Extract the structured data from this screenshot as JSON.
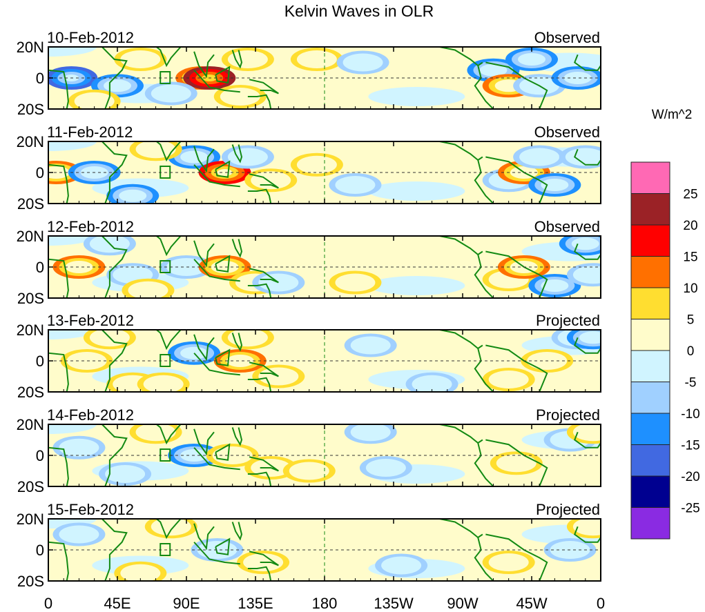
{
  "title": "Kelvin Waves in OLR",
  "units": "W/m^2",
  "lat_labels": [
    "20N",
    "0",
    "20S"
  ],
  "lon_labels": [
    "0",
    "45E",
    "90E",
    "135E",
    "180",
    "135W",
    "90W",
    "45W",
    "0"
  ],
  "colorbar": {
    "labels": [
      "25",
      "20",
      "15",
      "10",
      "5",
      "0",
      "-5",
      "-10",
      "-15",
      "-20",
      "-25"
    ],
    "colors": [
      "#ff69b4",
      "#9b2226",
      "#ff0000",
      "#ff7000",
      "#ffde30",
      "#fffccb",
      "#d0f4ff",
      "#a0d0ff",
      "#1e90ff",
      "#4169e1",
      "#000090",
      "#8a2be2"
    ]
  },
  "panels": [
    {
      "date": "10-Feb-2012",
      "status": "Observed",
      "features": [
        [
          15,
          0,
          -17
        ],
        [
          45,
          -5,
          -11
        ],
        [
          100,
          0,
          14
        ],
        [
          105,
          0,
          22
        ],
        [
          125,
          -12,
          8
        ],
        [
          130,
          12,
          10
        ],
        [
          175,
          12,
          6
        ],
        [
          205,
          10,
          -6
        ],
        [
          290,
          5,
          -11
        ],
        [
          300,
          -5,
          11
        ],
        [
          315,
          12,
          -12
        ],
        [
          320,
          -5,
          -8
        ],
        [
          345,
          0,
          -11
        ],
        [
          60,
          12,
          6
        ],
        [
          30,
          -15,
          6
        ],
        [
          80,
          -10,
          -8
        ]
      ]
    },
    {
      "date": "11-Feb-2012",
      "status": "Observed",
      "features": [
        [
          5,
          0,
          11
        ],
        [
          30,
          0,
          -11
        ],
        [
          55,
          -15,
          -11
        ],
        [
          95,
          10,
          -12
        ],
        [
          115,
          0,
          16
        ],
        [
          130,
          10,
          -8
        ],
        [
          145,
          -5,
          8
        ],
        [
          175,
          5,
          6
        ],
        [
          200,
          -8,
          -6
        ],
        [
          300,
          -5,
          -8
        ],
        [
          310,
          0,
          13
        ],
        [
          320,
          10,
          -8
        ],
        [
          330,
          -8,
          -12
        ],
        [
          350,
          10,
          -8
        ],
        [
          70,
          15,
          6
        ]
      ]
    },
    {
      "date": "12-Feb-2012",
      "status": "Observed",
      "features": [
        [
          20,
          0,
          12
        ],
        [
          40,
          15,
          -8
        ],
        [
          55,
          -5,
          -8
        ],
        [
          90,
          0,
          -8
        ],
        [
          115,
          0,
          12
        ],
        [
          135,
          -10,
          8
        ],
        [
          150,
          -10,
          -8
        ],
        [
          200,
          -10,
          6
        ],
        [
          300,
          -8,
          6
        ],
        [
          310,
          0,
          15
        ],
        [
          330,
          -12,
          -11
        ],
        [
          350,
          15,
          -11
        ],
        [
          355,
          -5,
          -8
        ],
        [
          65,
          -15,
          6
        ]
      ]
    },
    {
      "date": "13-Feb-2012",
      "status": "Projected",
      "features": [
        [
          25,
          0,
          8
        ],
        [
          40,
          15,
          8
        ],
        [
          55,
          -15,
          8
        ],
        [
          95,
          5,
          -11
        ],
        [
          125,
          0,
          12
        ],
        [
          130,
          15,
          8
        ],
        [
          150,
          -10,
          6
        ],
        [
          210,
          10,
          -6
        ],
        [
          250,
          -15,
          -6
        ],
        [
          300,
          -12,
          6
        ],
        [
          325,
          0,
          6
        ],
        [
          345,
          15,
          -8
        ],
        [
          355,
          15,
          -12
        ],
        [
          75,
          -15,
          6
        ]
      ]
    },
    {
      "date": "14-Feb-2012",
      "status": "Projected",
      "features": [
        [
          20,
          5,
          -8
        ],
        [
          50,
          -12,
          -8
        ],
        [
          70,
          15,
          6
        ],
        [
          95,
          0,
          -11
        ],
        [
          120,
          0,
          8
        ],
        [
          145,
          -8,
          6
        ],
        [
          170,
          -10,
          6
        ],
        [
          210,
          15,
          -6
        ],
        [
          220,
          -8,
          -6
        ],
        [
          305,
          -5,
          6
        ],
        [
          340,
          10,
          -6
        ],
        [
          355,
          15,
          8
        ]
      ]
    },
    {
      "date": "15-Feb-2012",
      "status": "Projected",
      "features": [
        [
          20,
          10,
          -6
        ],
        [
          60,
          -15,
          8
        ],
        [
          80,
          15,
          6
        ],
        [
          110,
          0,
          -8
        ],
        [
          140,
          -8,
          6
        ],
        [
          175,
          10,
          5
        ],
        [
          230,
          -10,
          -5
        ],
        [
          300,
          -8,
          6
        ],
        [
          340,
          0,
          -5
        ],
        [
          355,
          15,
          8
        ]
      ]
    }
  ]
}
